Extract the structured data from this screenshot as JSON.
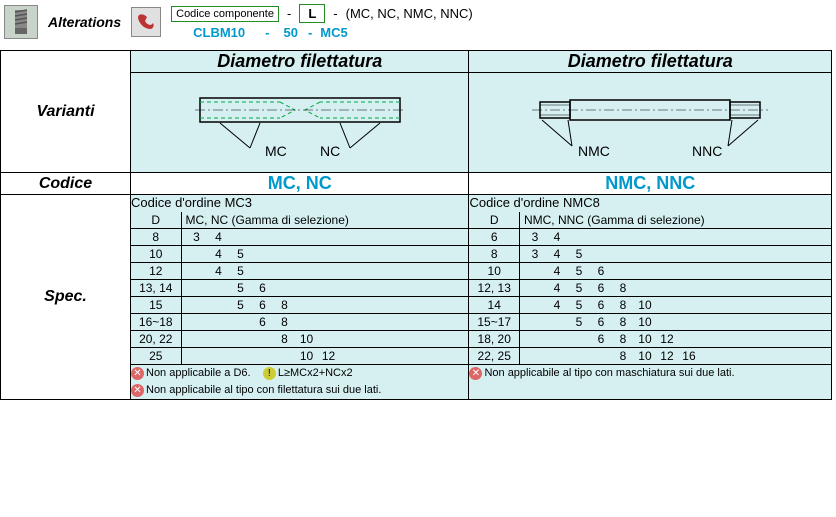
{
  "header": {
    "alterations_label": "Alterations",
    "code_component_label": "Codice componente",
    "l_label": "L",
    "suffix_text": "(MC, NC, NMC, NNC)",
    "example_code": "CLBM10",
    "example_l": "50",
    "example_suffix": "MC5",
    "dash": "-"
  },
  "columns": {
    "variants_label": "Varianti",
    "code_label": "Codice",
    "spec_label": "Spec.",
    "left_header": "Diametro filettatura",
    "right_header": "Diametro filettatura",
    "left_code": "MC, NC",
    "right_code": "NMC, NNC"
  },
  "diagram_left": {
    "label_mc": "MC",
    "label_nc": "NC"
  },
  "diagram_right": {
    "label_nmc": "NMC",
    "label_nnc": "NNC"
  },
  "spec_left": {
    "order_code_label": "Codice d'ordine",
    "order_code_value": "MC3",
    "col_d": "D",
    "col_range": "MC, NC (Gamma di selezione)",
    "rows": [
      {
        "d": "8",
        "vals": [
          "3",
          "4",
          "",
          "",
          "",
          ""
        ]
      },
      {
        "d": "10",
        "vals": [
          "",
          "4",
          "5",
          "",
          "",
          ""
        ]
      },
      {
        "d": "12",
        "vals": [
          "",
          "4",
          "5",
          "",
          "",
          ""
        ]
      },
      {
        "d": "13, 14",
        "vals": [
          "",
          "",
          "5",
          "6",
          "",
          ""
        ]
      },
      {
        "d": "15",
        "vals": [
          "",
          "",
          "5",
          "6",
          "8",
          ""
        ]
      },
      {
        "d": "16~18",
        "vals": [
          "",
          "",
          "",
          "6",
          "8",
          ""
        ]
      },
      {
        "d": "20, 22",
        "vals": [
          "",
          "",
          "",
          "",
          "8",
          "10"
        ]
      },
      {
        "d": "25",
        "vals": [
          "",
          "",
          "",
          "",
          "",
          "10",
          "12"
        ]
      }
    ],
    "note1": "Non applicabile a D6.",
    "note_formula": "L≥MCx2+NCx2",
    "note2": "Non applicabile al tipo con filettatura sui due lati."
  },
  "spec_right": {
    "order_code_label": "Codice d'ordine",
    "order_code_value": "NMC8",
    "col_d": "D",
    "col_range": "NMC, NNC (Gamma di selezione)",
    "rows": [
      {
        "d": "6",
        "vals": [
          "3",
          "4",
          "",
          "",
          "",
          "",
          ""
        ]
      },
      {
        "d": "8",
        "vals": [
          "3",
          "4",
          "5",
          "",
          "",
          "",
          ""
        ]
      },
      {
        "d": "10",
        "vals": [
          "",
          "4",
          "5",
          "6",
          "",
          "",
          ""
        ]
      },
      {
        "d": "12, 13",
        "vals": [
          "",
          "4",
          "5",
          "6",
          "8",
          "",
          ""
        ]
      },
      {
        "d": "14",
        "vals": [
          "",
          "4",
          "5",
          "6",
          "8",
          "10",
          ""
        ]
      },
      {
        "d": "15~17",
        "vals": [
          "",
          "",
          "5",
          "6",
          "8",
          "10",
          ""
        ]
      },
      {
        "d": "18, 20",
        "vals": [
          "",
          "",
          "",
          "6",
          "8",
          "10",
          "12"
        ]
      },
      {
        "d": "22, 25",
        "vals": [
          "",
          "",
          "",
          "",
          "8",
          "10",
          "12",
          "16"
        ]
      }
    ],
    "note1": "Non applicabile al tipo con maschiatura sui due lati."
  },
  "style": {
    "icon_bg": "#c8d4ca",
    "header_bg": "#d6f0f2",
    "blue": "#0099cc",
    "green": "#228b22"
  }
}
